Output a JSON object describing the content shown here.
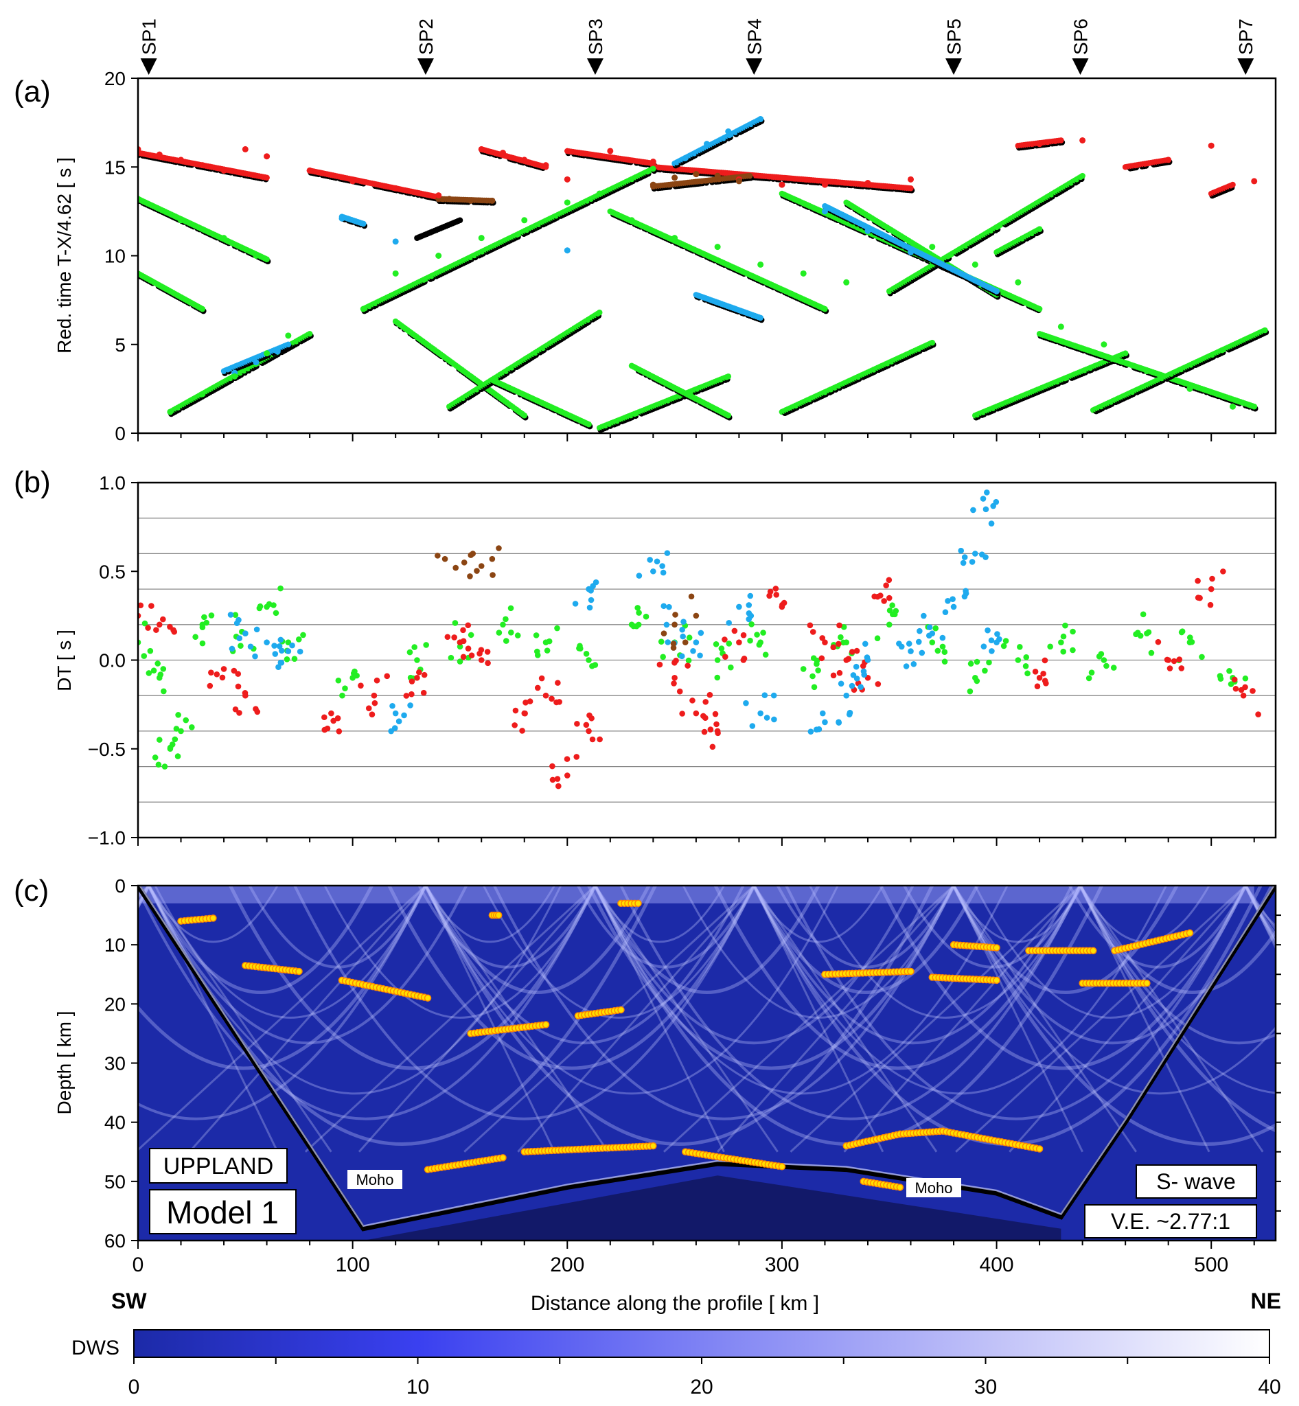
{
  "shot_labels": [
    "SP1",
    "SP2",
    "SP3",
    "SP4",
    "SP5",
    "SP6",
    "SP7"
  ],
  "shot_positions_km": [
    5,
    134,
    213,
    287,
    380,
    439,
    516
  ],
  "x_axis": {
    "label": "Distance along the profile   [ km ]",
    "ticks": [
      "0",
      "100",
      "200",
      "300",
      "400",
      "500"
    ],
    "left_end": "SW",
    "right_end": "NE",
    "range": [
      0,
      530
    ]
  },
  "panel_a": {
    "tag": "(a)",
    "ylabel": "Red. time   T-X/4.62   [ s ]",
    "yticks": [
      "0",
      "5",
      "10",
      "15",
      "20"
    ],
    "ylim": [
      0,
      20
    ]
  },
  "panel_b": {
    "tag": "(b)",
    "ylabel": "DT  [ s ]",
    "yticks": [
      "−1.0",
      "−0.5",
      "0.0",
      "0.5",
      "1.0"
    ],
    "ylim": [
      -1.0,
      1.0
    ]
  },
  "panel_c": {
    "tag": "(c)",
    "ylabel": "Depth   [ km ]",
    "yticks": [
      "0",
      "10",
      "20",
      "30",
      "40",
      "50",
      "60"
    ],
    "ylim": [
      0,
      60
    ],
    "region_label": "UPPLAND",
    "model_label": "Model 1",
    "wave_label": "S- wave",
    "ve_label": "V.E. ~2.77:1",
    "moho_label": "Moho"
  },
  "colorbar": {
    "label": "DWS",
    "ticks": [
      "0",
      "10",
      "20",
      "30",
      "40"
    ],
    "range": [
      0,
      40
    ]
  },
  "colors": {
    "observed": "#000000",
    "pg": "#22ee22",
    "pmp": "#ee1c1c",
    "pip": "#1eaaee",
    "other": "#8b4513",
    "dws_low": "#1c2aa8",
    "dws_high": "#ffffff",
    "reflector": "#ff8800",
    "reflector_fill": "#ffe000"
  },
  "chart_data": [
    {
      "type": "scatter",
      "title": "(a)",
      "xlabel": "Distance along the profile [ km ]",
      "ylabel": "Red. time T-X/4.62 [ s ]",
      "xlim": [
        0,
        530
      ],
      "ylim": [
        0,
        20
      ],
      "series": [
        {
          "color": "#ee1c1c",
          "x": [
            0,
            10,
            20,
            30,
            40,
            50,
            60,
            80,
            100,
            120,
            140,
            160,
            170,
            180,
            190,
            200,
            220,
            240,
            260,
            280,
            300,
            320,
            340,
            360,
            420,
            440,
            480,
            500,
            520
          ],
          "y": [
            16,
            15.7,
            15.4,
            15.1,
            14.8,
            16,
            15.6,
            14.8,
            14.2,
            13.8,
            13.4,
            16,
            15.8,
            15.4,
            15.1,
            14.3,
            15.9,
            15.3,
            14.6,
            14.3,
            14.0,
            14.0,
            14.1,
            14.3,
            16.3,
            16.5,
            15.4,
            16.2,
            14.2
          ]
        },
        {
          "color": "#1eaaee",
          "x": [
            45,
            55,
            65,
            95,
            120,
            200,
            255,
            265,
            275,
            290,
            320,
            340,
            360,
            380,
            400
          ],
          "y": [
            3.4,
            4.0,
            4.6,
            12.1,
            10.8,
            10.3,
            15.5,
            16.3,
            17.0,
            17.7,
            12.5,
            11.4,
            10.2,
            9.2,
            8.0
          ]
        },
        {
          "color": "#8b4513",
          "x": [
            145,
            155,
            165,
            240,
            250,
            260,
            270,
            280
          ],
          "y": [
            13.2,
            13.1,
            13.1,
            14.0,
            14.4,
            14.6,
            14.5,
            14.2
          ]
        },
        {
          "color": "#22ee22",
          "x": [
            0,
            20,
            40,
            55,
            15,
            30,
            45,
            60,
            70,
            105,
            120,
            140,
            160,
            180,
            200,
            215,
            230,
            250,
            270,
            290,
            310,
            330,
            350,
            370,
            390,
            410,
            430,
            450,
            470,
            490,
            510
          ],
          "y": [
            13.2,
            12,
            11,
            10,
            1.2,
            2.2,
            3.2,
            4.5,
            5.5,
            7.0,
            9,
            10,
            11,
            12,
            13,
            13.5,
            12,
            11,
            10.5,
            9.5,
            9,
            8.5,
            11.5,
            10.5,
            9.5,
            8.5,
            6,
            5,
            3.5,
            2.5,
            1.5
          ]
        }
      ]
    },
    {
      "type": "scatter",
      "title": "(b)",
      "xlabel": "Distance along the profile [ km ]",
      "ylabel": "DT [ s ]",
      "xlim": [
        0,
        530
      ],
      "ylim": [
        -1.0,
        1.0
      ],
      "series": [
        {
          "color": "#22ee22",
          "x": [
            0,
            10,
            15,
            20,
            30,
            50,
            60,
            70,
            100,
            130,
            150,
            170,
            190,
            210,
            230,
            250,
            270,
            290,
            310,
            330,
            350,
            370,
            390,
            410,
            430,
            450,
            470,
            490,
            510
          ],
          "y": [
            0.1,
            -0.1,
            -0.5,
            -0.4,
            0.2,
            0.15,
            0.3,
            0.1,
            -0.1,
            0.0,
            0.1,
            0.2,
            0.1,
            0.0,
            0.2,
            0.1,
            0.0,
            0.1,
            -0.05,
            0.1,
            0.2,
            0.1,
            -0.1,
            0.0,
            0.1,
            0.0,
            0.15,
            0.1,
            -0.1
          ]
        },
        {
          "color": "#ee1c1c",
          "x": [
            0,
            10,
            40,
            50,
            90,
            110,
            130,
            150,
            160,
            180,
            190,
            200,
            210,
            250,
            260,
            270,
            280,
            300,
            320,
            330,
            340,
            350,
            420,
            480,
            500,
            515
          ],
          "y": [
            0.25,
            0.2,
            -0.05,
            -0.2,
            -0.3,
            -0.2,
            -0.1,
            0.1,
            0.0,
            -0.3,
            -0.2,
            -0.65,
            -0.4,
            -0.1,
            -0.3,
            -0.4,
            0.1,
            0.3,
            0.1,
            0.0,
            -0.1,
            0.35,
            -0.1,
            0.0,
            0.4,
            -0.2
          ]
        },
        {
          "color": "#1eaaee",
          "x": [
            50,
            60,
            70,
            120,
            210,
            240,
            250,
            260,
            280,
            290,
            320,
            330,
            340,
            360,
            370,
            380,
            390,
            395,
            400
          ],
          "y": [
            0.15,
            0.1,
            0.05,
            -0.3,
            0.4,
            0.5,
            0.2,
            0.1,
            0.3,
            -0.3,
            -0.35,
            -0.2,
            0.0,
            0.05,
            0.15,
            0.3,
            0.6,
            0.85,
            0.1
          ]
        },
        {
          "color": "#8b4513",
          "x": [
            143,
            148,
            152,
            156,
            160,
            165,
            245,
            250,
            255,
            260
          ],
          "y": [
            0.57,
            0.52,
            0.55,
            0.6,
            0.53,
            0.57,
            0.15,
            0.2,
            0.1,
            0.25
          ]
        }
      ]
    },
    {
      "type": "heatmap",
      "title": "(c)",
      "xlabel": "Distance along the profile [ km ]",
      "ylabel": "Depth [ km ]",
      "xlim": [
        0,
        530
      ],
      "ylim": [
        60,
        0
      ],
      "colorbar": {
        "label": "DWS",
        "range": [
          0,
          40
        ]
      },
      "moho_depth_km": {
        "x": [
          0,
          105,
          200,
          270,
          330,
          400,
          430,
          460,
          530
        ],
        "y": [
          0,
          58,
          51,
          47,
          48,
          52,
          56,
          40,
          0
        ]
      },
      "reflectors": [
        {
          "x": [
            20,
            35
          ],
          "y": [
            6,
            5.5
          ]
        },
        {
          "x": [
            50,
            75
          ],
          "y": [
            13.5,
            14.5
          ]
        },
        {
          "x": [
            95,
            135
          ],
          "y": [
            16,
            19
          ]
        },
        {
          "x": [
            155,
            190
          ],
          "y": [
            25,
            23.5
          ]
        },
        {
          "x": [
            165,
            168
          ],
          "y": [
            5,
            5
          ]
        },
        {
          "x": [
            205,
            225
          ],
          "y": [
            22,
            21
          ]
        },
        {
          "x": [
            225,
            233
          ],
          "y": [
            3,
            3
          ]
        },
        {
          "x": [
            135,
            170
          ],
          "y": [
            48,
            46
          ]
        },
        {
          "x": [
            180,
            240
          ],
          "y": [
            45,
            44
          ]
        },
        {
          "x": [
            255,
            300
          ],
          "y": [
            45,
            47.5
          ]
        },
        {
          "x": [
            320,
            360
          ],
          "y": [
            15,
            14.5
          ]
        },
        {
          "x": [
            330,
            355
          ],
          "y": [
            44,
            42
          ]
        },
        {
          "x": [
            355,
            375
          ],
          "y": [
            42,
            41.5
          ]
        },
        {
          "x": [
            375,
            420
          ],
          "y": [
            41.5,
            44.5
          ]
        },
        {
          "x": [
            338,
            355
          ],
          "y": [
            50,
            51
          ]
        },
        {
          "x": [
            370,
            400
          ],
          "y": [
            15.5,
            16
          ]
        },
        {
          "x": [
            380,
            400
          ],
          "y": [
            10,
            10.5
          ]
        },
        {
          "x": [
            415,
            445
          ],
          "y": [
            11,
            11
          ]
        },
        {
          "x": [
            440,
            470
          ],
          "y": [
            16.5,
            16.5
          ]
        },
        {
          "x": [
            455,
            490
          ],
          "y": [
            11,
            8
          ]
        }
      ]
    }
  ]
}
